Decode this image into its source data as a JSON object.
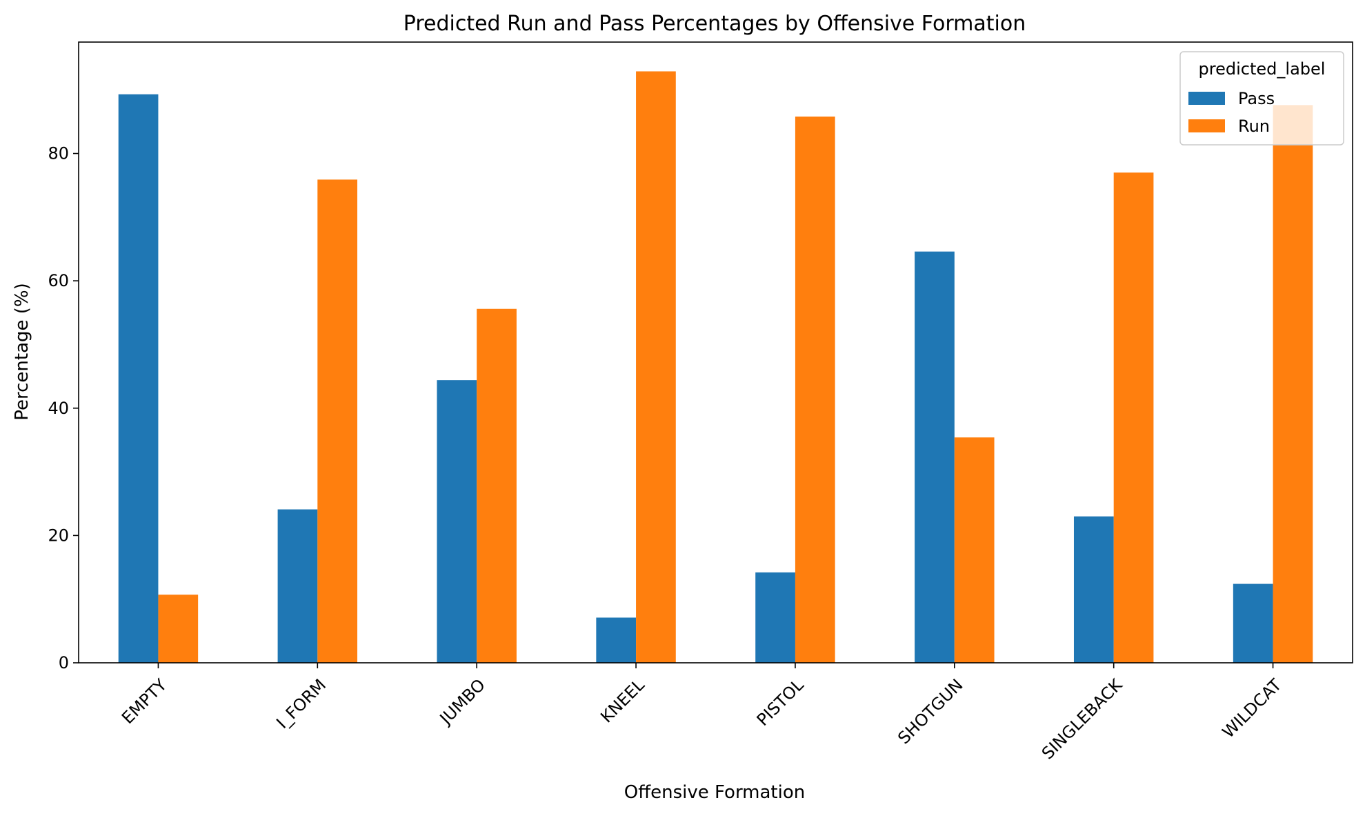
{
  "chart_data": {
    "type": "bar",
    "title": "Predicted Run and Pass Percentages by Offensive Formation",
    "xlabel": "Offensive Formation",
    "ylabel": "Percentage (%)",
    "categories": [
      "EMPTY",
      "I_FORM",
      "JUMBO",
      "KNEEL",
      "PISTOL",
      "SHOTGUN",
      "SINGLEBACK",
      "WILDCAT"
    ],
    "series": [
      {
        "name": "Pass",
        "color": "#1f77b4",
        "values": [
          89.3,
          24.1,
          44.4,
          7.1,
          14.2,
          64.6,
          23.0,
          12.4
        ]
      },
      {
        "name": "Run",
        "color": "#ff7f0e",
        "values": [
          10.7,
          75.9,
          55.6,
          92.9,
          85.8,
          35.4,
          77.0,
          87.6
        ]
      }
    ],
    "ylim": [
      0,
      97.5
    ],
    "yticks": [
      0,
      20,
      40,
      60,
      80
    ],
    "grid": false,
    "legend": {
      "title": "predicted_label",
      "placement": "top-right"
    }
  }
}
